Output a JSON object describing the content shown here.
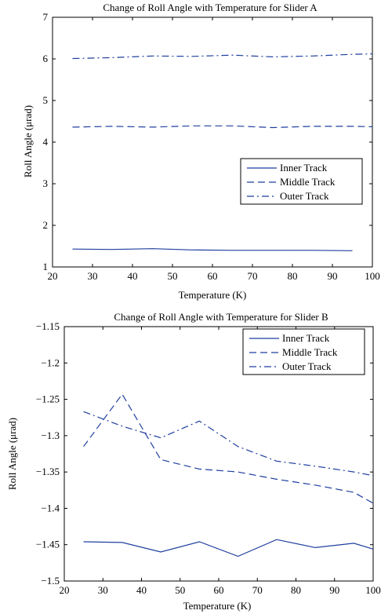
{
  "chart_data": [
    {
      "type": "line",
      "title": "Change of Roll Angle with Temperature for Slider A",
      "xlabel": "Temperature (K)",
      "ylabel": "Roll Angle (μrad)",
      "xlim": [
        20,
        100
      ],
      "ylim": [
        1,
        7
      ],
      "xticks": [
        "20",
        "30",
        "40",
        "50",
        "60",
        "70",
        "80",
        "90",
        "100"
      ],
      "yticks": [
        "1",
        "2",
        "3",
        "4",
        "5",
        "6",
        "7"
      ],
      "grid": false,
      "legend_position": "center-right",
      "series": [
        {
          "name": "Inner Track",
          "style": "solid",
          "color": "#1f3f9f",
          "x": [
            25,
            35,
            45,
            55,
            65,
            75,
            85,
            95
          ],
          "y": [
            1.43,
            1.42,
            1.44,
            1.41,
            1.4,
            1.4,
            1.4,
            1.39
          ]
        },
        {
          "name": "Middle Track",
          "style": "dashed",
          "color": "#1f3f9f",
          "x": [
            25,
            35,
            45,
            55,
            65,
            75,
            85,
            95,
            100
          ],
          "y": [
            4.36,
            4.38,
            4.36,
            4.39,
            4.39,
            4.35,
            4.38,
            4.38,
            4.37
          ]
        },
        {
          "name": "Outer Track",
          "style": "dashdot",
          "color": "#1f3f9f",
          "x": [
            25,
            35,
            45,
            55,
            65,
            75,
            85,
            95,
            100
          ],
          "y": [
            6.01,
            6.03,
            6.07,
            6.06,
            6.09,
            6.05,
            6.07,
            6.11,
            6.12
          ]
        }
      ]
    },
    {
      "type": "line",
      "title": "Change of Roll Angle with Temperature for Slider B",
      "xlabel": "Temperature (K)",
      "ylabel": "Roll Angle (μrad)",
      "xlim": [
        20,
        100
      ],
      "ylim": [
        -1.5,
        -1.15
      ],
      "xticks": [
        "20",
        "30",
        "40",
        "50",
        "60",
        "70",
        "80",
        "90",
        "100"
      ],
      "yticks": [
        "−1.5",
        "−1.45",
        "−1.4",
        "−1.35",
        "−1.3",
        "−1.25",
        "−1.2",
        "−1.15"
      ],
      "grid": false,
      "legend_position": "top-right",
      "series": [
        {
          "name": "Inner Track",
          "style": "solid",
          "color": "#1f3f9f",
          "x": [
            25,
            35,
            45,
            55,
            65,
            75,
            85,
            95,
            100
          ],
          "y": [
            -1.446,
            -1.447,
            -1.46,
            -1.446,
            -1.466,
            -1.443,
            -1.454,
            -1.448,
            -1.456
          ]
        },
        {
          "name": "Middle Track",
          "style": "dashed",
          "color": "#1f3f9f",
          "x": [
            25,
            35,
            45,
            55,
            65,
            75,
            85,
            95,
            100
          ],
          "y": [
            -1.315,
            -1.243,
            -1.333,
            -1.346,
            -1.35,
            -1.36,
            -1.368,
            -1.378,
            -1.393
          ]
        },
        {
          "name": "Outer Track",
          "style": "dashdot",
          "color": "#1f3f9f",
          "x": [
            25,
            35,
            45,
            55,
            65,
            75,
            85,
            95,
            100
          ],
          "y": [
            -1.267,
            -1.287,
            -1.303,
            -1.28,
            -1.315,
            -1.335,
            -1.342,
            -1.35,
            -1.355
          ]
        }
      ]
    }
  ]
}
